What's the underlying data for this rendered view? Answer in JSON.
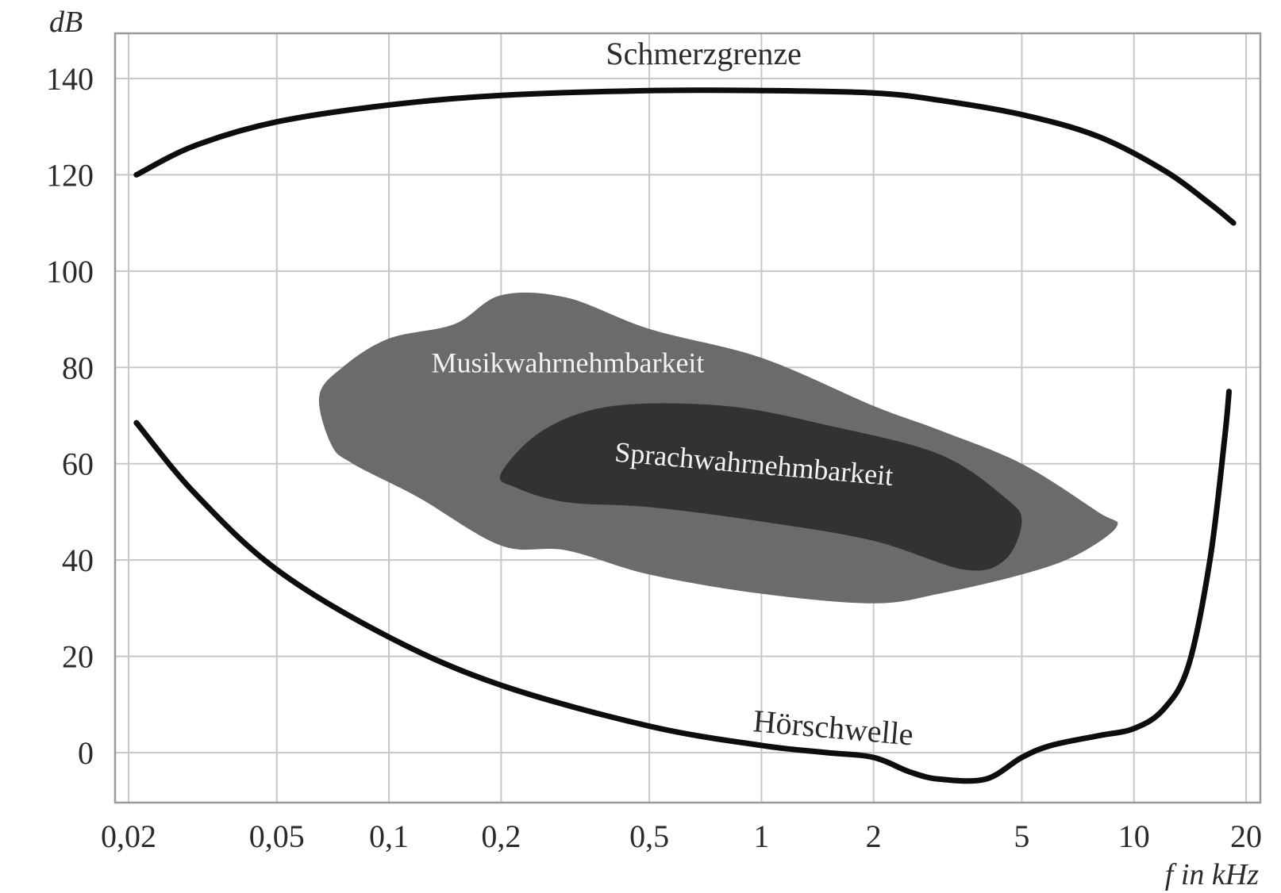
{
  "chart_data": {
    "type": "line",
    "title": "",
    "xlabel": "f in kHz",
    "ylabel": "dB",
    "xscale": "log",
    "xlim": [
      0.02,
      20
    ],
    "ylim": [
      -10,
      150
    ],
    "grid": true,
    "x_ticks": [
      {
        "value": 0.02,
        "label": "0,02"
      },
      {
        "value": 0.05,
        "label": "0,05"
      },
      {
        "value": 0.1,
        "label": "0,1"
      },
      {
        "value": 0.2,
        "label": "0,2"
      },
      {
        "value": 0.5,
        "label": "0,5"
      },
      {
        "value": 1,
        "label": "1"
      },
      {
        "value": 2,
        "label": "2"
      },
      {
        "value": 5,
        "label": "5"
      },
      {
        "value": 10,
        "label": "10"
      },
      {
        "value": 20,
        "label": "20"
      }
    ],
    "y_ticks": [
      {
        "value": 0,
        "label": "0"
      },
      {
        "value": 20,
        "label": "20"
      },
      {
        "value": 40,
        "label": "40"
      },
      {
        "value": 60,
        "label": "60"
      },
      {
        "value": 80,
        "label": "80"
      },
      {
        "value": 100,
        "label": "100"
      },
      {
        "value": 120,
        "label": "120"
      },
      {
        "value": 140,
        "label": "140"
      }
    ],
    "series": [
      {
        "name": "Schmerzgrenze",
        "color": "#0d0d0d",
        "points": [
          [
            0.021,
            120
          ],
          [
            0.03,
            126
          ],
          [
            0.05,
            131
          ],
          [
            0.1,
            134.5
          ],
          [
            0.2,
            136.5
          ],
          [
            0.5,
            137.5
          ],
          [
            1,
            137.5
          ],
          [
            2,
            137
          ],
          [
            3,
            135.5
          ],
          [
            5,
            132.5
          ],
          [
            8,
            128
          ],
          [
            12,
            121
          ],
          [
            16,
            114
          ],
          [
            18.5,
            110
          ]
        ]
      },
      {
        "name": "Hörschwelle",
        "color": "#0d0d0d",
        "points": [
          [
            0.021,
            68.5
          ],
          [
            0.03,
            54
          ],
          [
            0.05,
            38
          ],
          [
            0.1,
            24
          ],
          [
            0.2,
            14
          ],
          [
            0.5,
            5.5
          ],
          [
            1,
            1.5
          ],
          [
            1.5,
            0
          ],
          [
            2,
            -1
          ],
          [
            2.5,
            -4
          ],
          [
            3,
            -5.5
          ],
          [
            4,
            -5.5
          ],
          [
            5,
            -1
          ],
          [
            6,
            1.5
          ],
          [
            8,
            3.5
          ],
          [
            10,
            5
          ],
          [
            12,
            9
          ],
          [
            14,
            18
          ],
          [
            16,
            40
          ],
          [
            17.5,
            65
          ],
          [
            18,
            75
          ]
        ]
      }
    ],
    "regions": [
      {
        "name": "Musikwahrnehmbarkeit",
        "color": "#6b6b6b",
        "points": [
          [
            0.065,
            74
          ],
          [
            0.075,
            80
          ],
          [
            0.1,
            86
          ],
          [
            0.15,
            89
          ],
          [
            0.2,
            95
          ],
          [
            0.3,
            94.5
          ],
          [
            0.5,
            88
          ],
          [
            1,
            82
          ],
          [
            2,
            72
          ],
          [
            3,
            67
          ],
          [
            5,
            60
          ],
          [
            8,
            50
          ],
          [
            9,
            47
          ],
          [
            7,
            41
          ],
          [
            5,
            37
          ],
          [
            3,
            33
          ],
          [
            2,
            31
          ],
          [
            1,
            33
          ],
          [
            0.5,
            37
          ],
          [
            0.3,
            42
          ],
          [
            0.2,
            43
          ],
          [
            0.12,
            53
          ],
          [
            0.08,
            60
          ],
          [
            0.07,
            64
          ]
        ]
      },
      {
        "name": "Sprachwahrnehmbarkeit",
        "color": "#323232",
        "points": [
          [
            0.2,
            58
          ],
          [
            0.26,
            67
          ],
          [
            0.4,
            72
          ],
          [
            0.8,
            72
          ],
          [
            1.5,
            68
          ],
          [
            3,
            62
          ],
          [
            4.5,
            53
          ],
          [
            5,
            48
          ],
          [
            4.5,
            40
          ],
          [
            3.5,
            38
          ],
          [
            2,
            44
          ],
          [
            1,
            48
          ],
          [
            0.5,
            51
          ],
          [
            0.3,
            52
          ],
          [
            0.22,
            55
          ]
        ]
      }
    ],
    "annotations": [
      {
        "text": "Schmerzgrenze",
        "x": 0.7,
        "y": 143
      },
      {
        "text": "Musikwahrnehmbarkeit",
        "x": 0.13,
        "y": 79
      },
      {
        "text": "Sprachwahrnehmbarkeit",
        "x": 0.95,
        "y": 58
      },
      {
        "text": "Hörschwelle",
        "x": 1.55,
        "y": 3
      }
    ]
  }
}
